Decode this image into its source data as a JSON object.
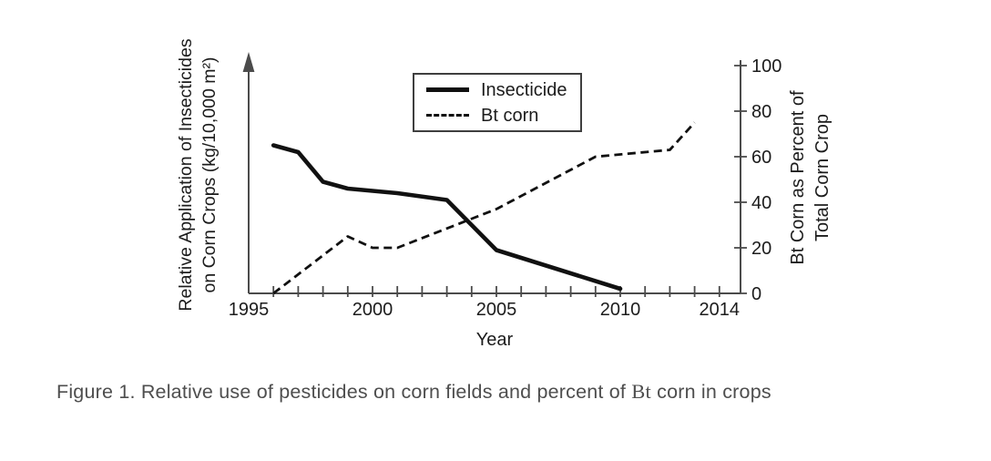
{
  "caption": {
    "prefix": "Figure 1. Relative use of pesticides on corn fields and percent of ",
    "bt_term": "Bt",
    "suffix": " corn in crops"
  },
  "chart_data": {
    "type": "line",
    "title": "",
    "xlabel": "Year",
    "grid": false,
    "legend_position": "top-center",
    "line_color": "#111111",
    "x_axis": {
      "range": [
        1995,
        2015
      ],
      "labeled_ticks": [
        1995,
        2000,
        2005,
        2010,
        2014
      ],
      "minor_tick_years": [
        1996,
        1997,
        1998,
        1999,
        2000,
        2001,
        2002,
        2003,
        2004,
        2005,
        2006,
        2007,
        2008,
        2009,
        2010,
        2011,
        2012,
        2013,
        2014
      ]
    },
    "left_axis": {
      "label_lines": [
        "Relative Application of Insecticides",
        "on Corn Crops (kg/10,000 m²)"
      ],
      "numeric_scale_shown": false,
      "arrow": true
    },
    "right_axis": {
      "label_lines": [
        "Bt Corn as Percent of",
        "Total Corn Crop"
      ],
      "range": [
        0,
        100
      ],
      "ticks": [
        0,
        20,
        40,
        60,
        80,
        100
      ]
    },
    "series": [
      {
        "name": "Insecticide",
        "line_style": "solid",
        "points_year_value": [
          [
            1996,
            65
          ],
          [
            1997,
            62
          ],
          [
            1998,
            49
          ],
          [
            1999,
            46
          ],
          [
            2000,
            45
          ],
          [
            2001,
            44
          ],
          [
            2003,
            41
          ],
          [
            2005,
            19
          ],
          [
            2010,
            2
          ]
        ]
      },
      {
        "name": "Bt corn",
        "line_style": "dashed",
        "points_year_value": [
          [
            1996,
            0
          ],
          [
            1999,
            25
          ],
          [
            2000,
            20
          ],
          [
            2001,
            20
          ],
          [
            2005,
            37
          ],
          [
            2009,
            60
          ],
          [
            2012,
            63
          ],
          [
            2013,
            75
          ]
        ]
      }
    ]
  }
}
